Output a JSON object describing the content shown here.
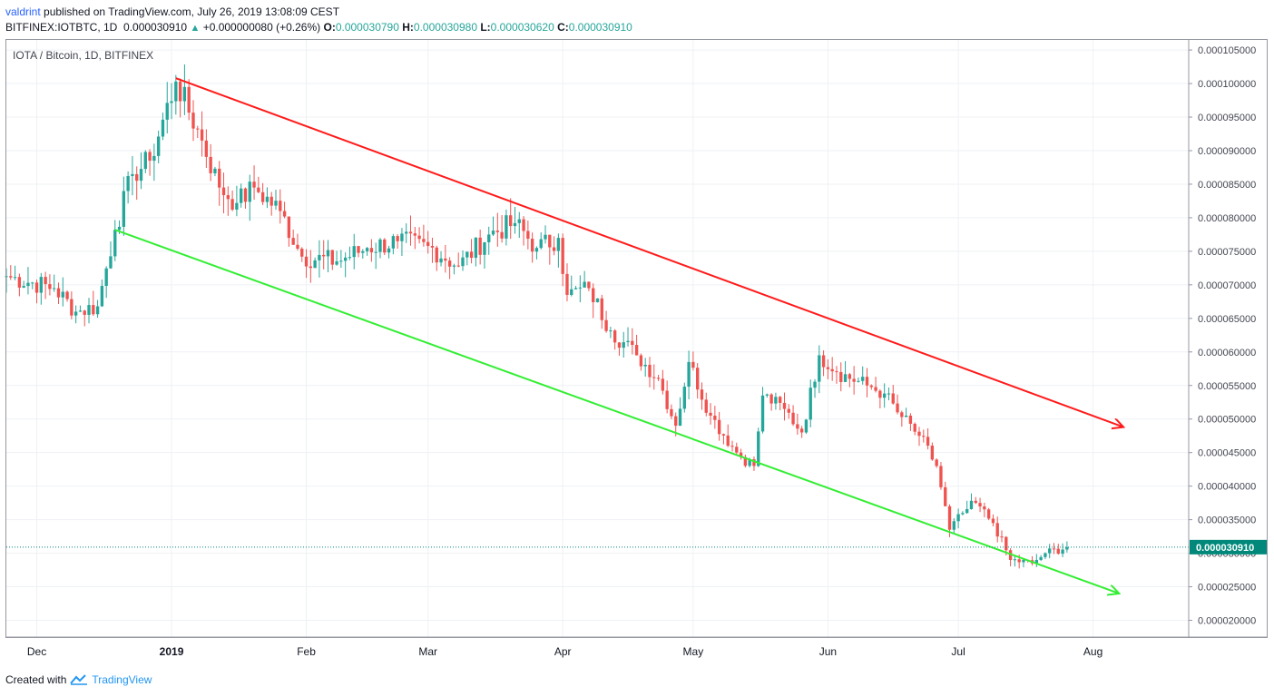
{
  "header": {
    "user": "valdrint",
    "published_text": "published on TradingView.com, July 26, 2019 13:08:09 CEST",
    "symbol": "BITFINEX:IOTBTC, 1D",
    "last": "0.000030910",
    "change": "+0.000000080 (+0.26%)",
    "open_label": "O:",
    "open": "0.000030790",
    "high_label": "H:",
    "high": "0.000030980",
    "low_label": "L:",
    "low": "0.000030620",
    "close_label": "C:",
    "close": "0.000030910"
  },
  "pane_label": "IOTA / Bitcoin, 1D, BITFINEX",
  "footer": {
    "created_with": "Created with",
    "brand": "TradingView"
  },
  "colors": {
    "up": "#26a69a",
    "down": "#ef5350",
    "resistance": "#ff1a1a",
    "support": "#33ee33",
    "price_tag": "#00897b"
  },
  "chart_data": {
    "type": "candlestick",
    "title": "IOTA / Bitcoin, 1D, BITFINEX",
    "x_range": [
      "2018-11-24",
      "2019-08-23"
    ],
    "y_range": [
      1.75e-05,
      0.0001065
    ],
    "y_ticks": [
      "0.000105000",
      "0.000100000",
      "0.000095000",
      "0.000090000",
      "0.000085000",
      "0.000080000",
      "0.000075000",
      "0.000070000",
      "0.000065000",
      "0.000060000",
      "0.000055000",
      "0.000050000",
      "0.000045000",
      "0.000040000",
      "0.000035000",
      "0.000030000",
      "0.000025000",
      "0.000020000"
    ],
    "y_tick_values": [
      0.000105,
      0.0001,
      9.5e-05,
      9e-05,
      8.5e-05,
      8e-05,
      7.5e-05,
      7e-05,
      6.5e-05,
      6e-05,
      5.5e-05,
      5e-05,
      4.5e-05,
      4e-05,
      3.5e-05,
      3e-05,
      2.5e-05,
      2e-05
    ],
    "x_ticks": [
      {
        "label": "Dec",
        "date": "2018-12-01",
        "bold": false
      },
      {
        "label": "2019",
        "date": "2019-01-01",
        "bold": true
      },
      {
        "label": "Feb",
        "date": "2019-02-01",
        "bold": false
      },
      {
        "label": "Mar",
        "date": "2019-03-01",
        "bold": false
      },
      {
        "label": "Apr",
        "date": "2019-04-01",
        "bold": false
      },
      {
        "label": "May",
        "date": "2019-05-01",
        "bold": false
      },
      {
        "label": "Jun",
        "date": "2019-06-01",
        "bold": false
      },
      {
        "label": "Jul",
        "date": "2019-07-01",
        "bold": false
      },
      {
        "label": "Aug",
        "date": "2019-08-01",
        "bold": false
      }
    ],
    "last_price": 3.091e-05,
    "last_price_label": "0.000030910",
    "trendlines": [
      {
        "name": "resistance",
        "start": {
          "date": "2019-01-02",
          "price": 0.0001008
        },
        "end": {
          "date": "2019-08-08",
          "price": 4.88e-05
        },
        "arrow": true
      },
      {
        "name": "support",
        "start": {
          "date": "2018-12-19",
          "price": 7.82e-05
        },
        "end": {
          "date": "2019-08-07",
          "price": 2.4e-05
        },
        "arrow": true
      }
    ],
    "anchors": [
      {
        "date": "2018-11-24",
        "close": 7.13e-05
      },
      {
        "date": "2018-12-05",
        "close": 6.95e-05
      },
      {
        "date": "2018-12-10",
        "close": 6.6e-05
      },
      {
        "date": "2018-12-15",
        "close": 6.68e-05
      },
      {
        "date": "2018-12-19",
        "close": 7.82e-05
      },
      {
        "date": "2018-12-23",
        "close": 8.65e-05
      },
      {
        "date": "2018-12-27",
        "close": 8.85e-05
      },
      {
        "date": "2019-01-02",
        "close": 0.0001003
      },
      {
        "date": "2019-01-08",
        "close": 9.15e-05
      },
      {
        "date": "2019-01-12",
        "close": 8.45e-05
      },
      {
        "date": "2019-01-16",
        "close": 8.22e-05
      },
      {
        "date": "2019-01-20",
        "close": 8.45e-05
      },
      {
        "date": "2019-01-26",
        "close": 8.1e-05
      },
      {
        "date": "2019-01-31",
        "close": 7.42e-05
      },
      {
        "date": "2019-02-08",
        "close": 7.35e-05
      },
      {
        "date": "2019-02-15",
        "close": 7.55e-05
      },
      {
        "date": "2019-02-22",
        "close": 7.65e-05
      },
      {
        "date": "2019-03-01",
        "close": 7.58e-05
      },
      {
        "date": "2019-03-08",
        "close": 7.28e-05
      },
      {
        "date": "2019-03-15",
        "close": 7.75e-05
      },
      {
        "date": "2019-03-21",
        "close": 7.92e-05
      },
      {
        "date": "2019-03-26",
        "close": 7.55e-05
      },
      {
        "date": "2019-03-31",
        "close": 7.7e-05
      },
      {
        "date": "2019-04-02",
        "close": 6.85e-05
      },
      {
        "date": "2019-04-07",
        "close": 6.95e-05
      },
      {
        "date": "2019-04-12",
        "close": 6.32e-05
      },
      {
        "date": "2019-04-18",
        "close": 5.95e-05
      },
      {
        "date": "2019-04-23",
        "close": 5.6e-05
      },
      {
        "date": "2019-04-27",
        "close": 4.9e-05
      },
      {
        "date": "2019-04-30",
        "close": 5.85e-05
      },
      {
        "date": "2019-05-05",
        "close": 5.05e-05
      },
      {
        "date": "2019-05-11",
        "close": 4.5e-05
      },
      {
        "date": "2019-05-15",
        "close": 4.3e-05
      },
      {
        "date": "2019-05-17",
        "close": 5.35e-05
      },
      {
        "date": "2019-05-22",
        "close": 5.15e-05
      },
      {
        "date": "2019-05-26",
        "close": 4.8e-05
      },
      {
        "date": "2019-05-30",
        "close": 5.95e-05
      },
      {
        "date": "2019-06-03",
        "close": 5.7e-05
      },
      {
        "date": "2019-06-10",
        "close": 5.5e-05
      },
      {
        "date": "2019-06-14",
        "close": 5.38e-05
      },
      {
        "date": "2019-06-17",
        "close": 5.1e-05
      },
      {
        "date": "2019-06-22",
        "close": 4.75e-05
      },
      {
        "date": "2019-06-26",
        "close": 4.3e-05
      },
      {
        "date": "2019-06-29",
        "close": 3.35e-05
      },
      {
        "date": "2019-07-02",
        "close": 3.6e-05
      },
      {
        "date": "2019-07-05",
        "close": 3.75e-05
      },
      {
        "date": "2019-07-09",
        "close": 3.45e-05
      },
      {
        "date": "2019-07-13",
        "close": 2.9e-05
      },
      {
        "date": "2019-07-18",
        "close": 2.85e-05
      },
      {
        "date": "2019-07-21",
        "close": 3e-05
      },
      {
        "date": "2019-07-26",
        "close": 3.091e-05
      }
    ]
  }
}
